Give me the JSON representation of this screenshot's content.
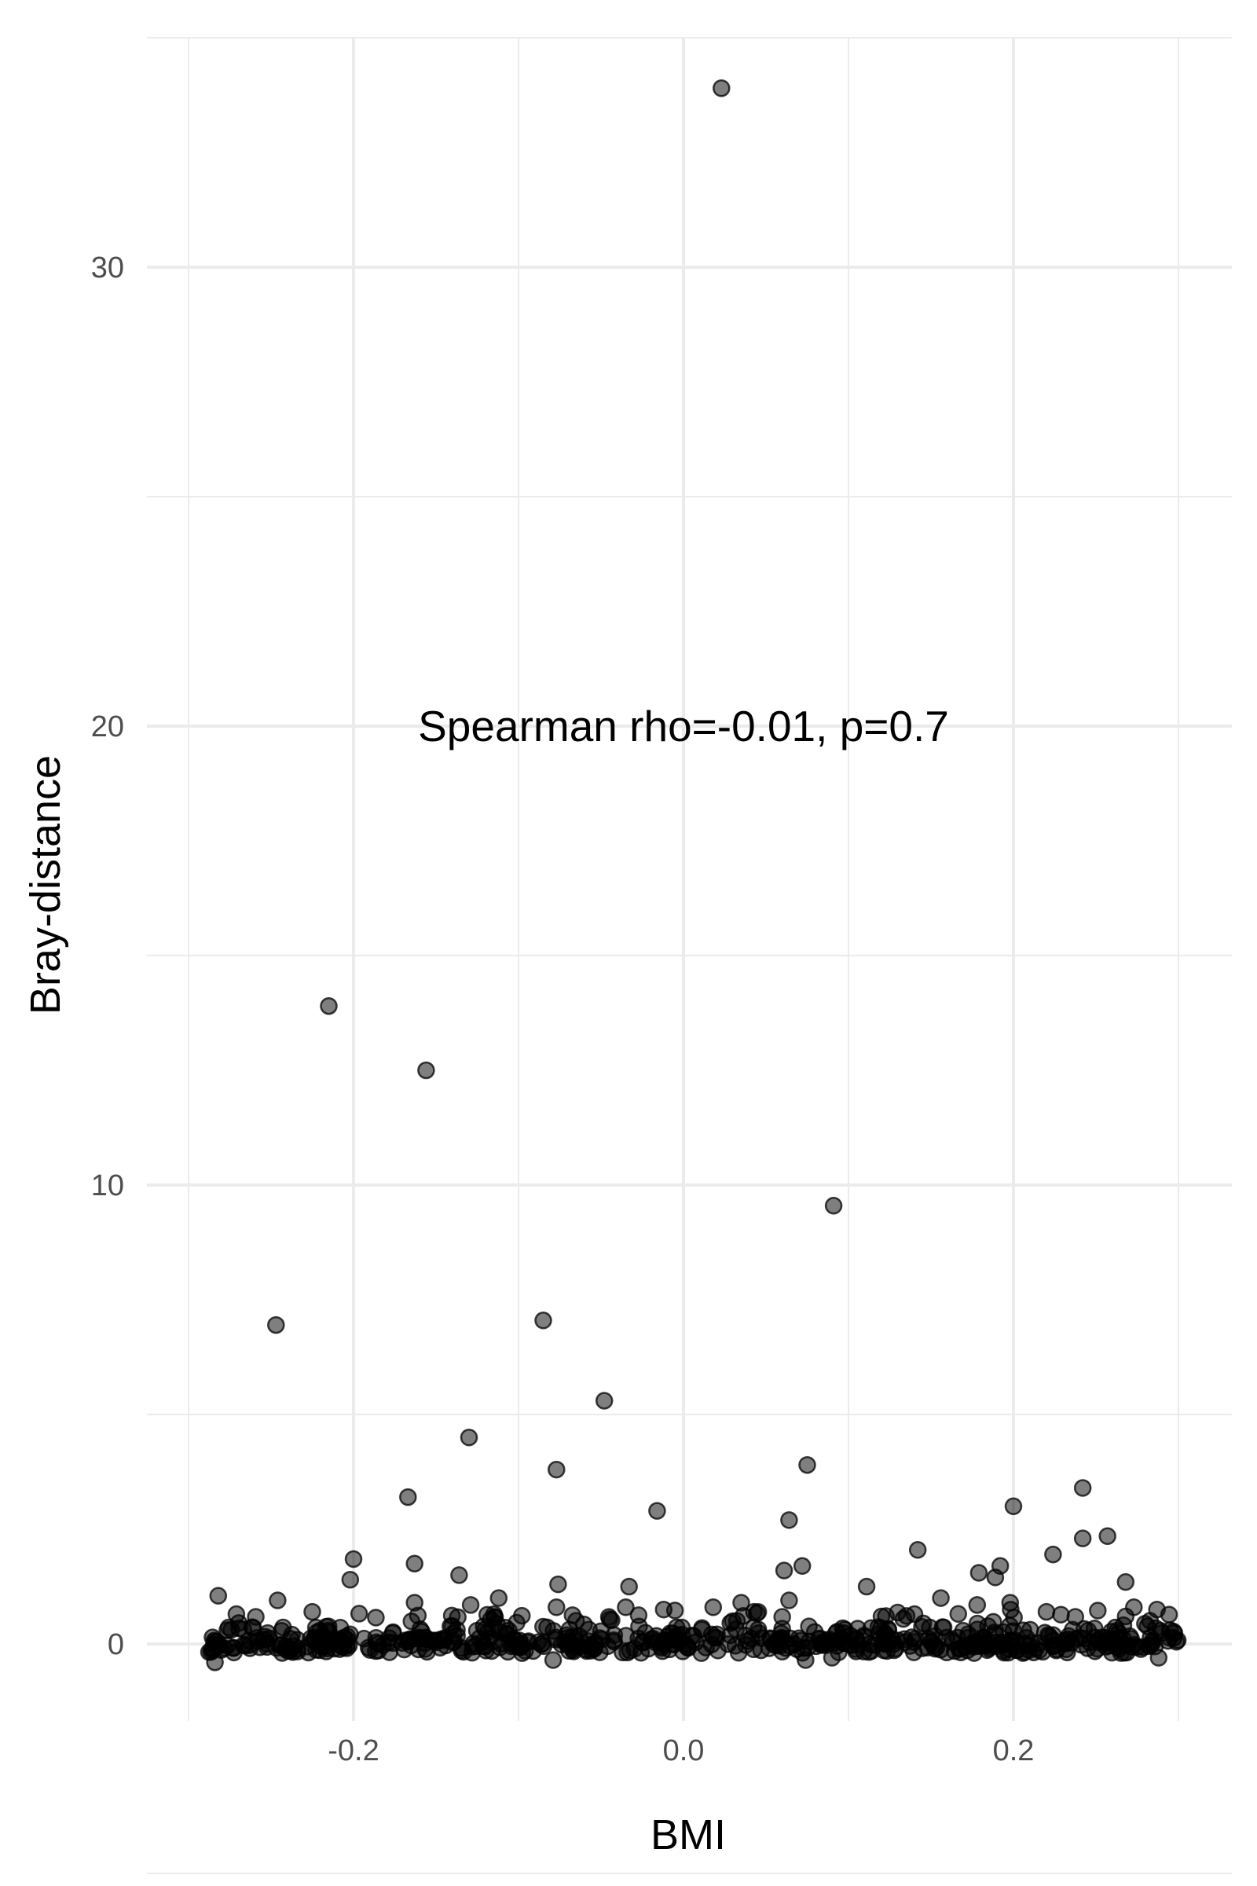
{
  "chart_data": {
    "type": "scatter",
    "xlabel": "BMI",
    "ylabel": "Bray-distance",
    "annotation": "Spearman rho=-0.01, p=0.7",
    "x_ticks": [
      {
        "value": -0.2,
        "label": "-0.2"
      },
      {
        "value": 0.0,
        "label": "0.0"
      },
      {
        "value": 0.2,
        "label": "0.2"
      }
    ],
    "y_ticks": [
      {
        "value": 0,
        "label": "0"
      },
      {
        "value": 10,
        "label": "10"
      },
      {
        "value": 20,
        "label": "20"
      },
      {
        "value": 30,
        "label": "30"
      }
    ],
    "xlim": [
      -0.3,
      0.3
    ],
    "ylim": [
      -2,
      35
    ],
    "grid": true,
    "point_color": "#000000",
    "point_opacity": 0.5,
    "annotation_pos": {
      "x": 0.0,
      "y": 20
    },
    "highlighted_points": [
      {
        "x": 0.023,
        "y": 33.9
      },
      {
        "x": -0.215,
        "y": 13.9
      },
      {
        "x": -0.156,
        "y": 12.5
      },
      {
        "x": 0.091,
        "y": 9.55
      },
      {
        "x": -0.247,
        "y": 6.95
      },
      {
        "x": -0.085,
        "y": 7.05
      },
      {
        "x": -0.048,
        "y": 5.3
      },
      {
        "x": -0.13,
        "y": 4.5
      },
      {
        "x": 0.075,
        "y": 3.9
      },
      {
        "x": -0.077,
        "y": 3.8
      },
      {
        "x": -0.167,
        "y": 3.2
      },
      {
        "x": 0.242,
        "y": 3.4
      },
      {
        "x": 0.2,
        "y": 3.0
      },
      {
        "x": -0.016,
        "y": 2.9
      },
      {
        "x": 0.064,
        "y": 2.7
      },
      {
        "x": 0.242,
        "y": 2.3
      },
      {
        "x": 0.257,
        "y": 2.35
      },
      {
        "x": 0.142,
        "y": 2.05
      },
      {
        "x": 0.224,
        "y": 1.95
      },
      {
        "x": -0.2,
        "y": 1.85
      },
      {
        "x": -0.163,
        "y": 1.75
      },
      {
        "x": 0.072,
        "y": 1.7
      },
      {
        "x": 0.192,
        "y": 1.7
      },
      {
        "x": 0.061,
        "y": 1.6
      },
      {
        "x": 0.179,
        "y": 1.55
      },
      {
        "x": -0.136,
        "y": 1.5
      },
      {
        "x": -0.202,
        "y": 1.4
      },
      {
        "x": 0.189,
        "y": 1.45
      },
      {
        "x": 0.268,
        "y": 1.35
      },
      {
        "x": -0.076,
        "y": 1.3
      },
      {
        "x": -0.033,
        "y": 1.25
      },
      {
        "x": 0.111,
        "y": 1.25
      },
      {
        "x": -0.282,
        "y": 1.05
      },
      {
        "x": -0.112,
        "y": 1.0
      },
      {
        "x": 0.156,
        "y": 1.0
      },
      {
        "x": -0.246,
        "y": 0.95
      },
      {
        "x": -0.163,
        "y": 0.9
      },
      {
        "x": 0.035,
        "y": 0.9
      },
      {
        "x": 0.198,
        "y": 0.9
      },
      {
        "x": -0.129,
        "y": 0.85
      },
      {
        "x": 0.064,
        "y": 0.95
      },
      {
        "x": 0.178,
        "y": 0.85
      },
      {
        "x": -0.077,
        "y": 0.8
      },
      {
        "x": -0.035,
        "y": 0.8
      },
      {
        "x": 0.018,
        "y": 0.8
      },
      {
        "x": 0.273,
        "y": 0.8
      },
      {
        "x": -0.012,
        "y": 0.75
      },
      {
        "x": -0.225,
        "y": 0.7
      },
      {
        "x": 0.22,
        "y": 0.7
      },
      {
        "x": 0.287,
        "y": 0.75
      },
      {
        "x": -0.271,
        "y": 0.65
      },
      {
        "x": 0.12,
        "y": 0.6
      },
      {
        "x": 0.14,
        "y": 0.65
      },
      {
        "x": 0.268,
        "y": 0.6
      },
      {
        "x": -0.079,
        "y": -0.35
      },
      {
        "x": -0.284,
        "y": -0.4
      },
      {
        "x": 0.074,
        "y": -0.35
      },
      {
        "x": 0.09,
        "y": -0.3
      },
      {
        "x": 0.288,
        "y": -0.3
      }
    ]
  }
}
